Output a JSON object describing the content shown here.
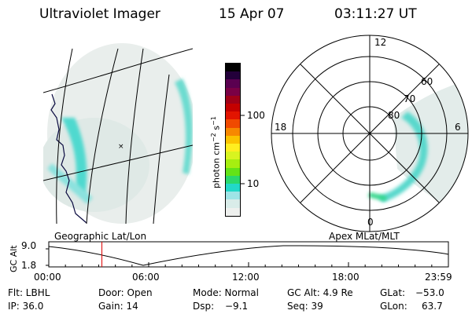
{
  "header": {
    "title": "Ultraviolet Imager",
    "date": "15 Apr 07",
    "time": "03:11:27 UT"
  },
  "panels": {
    "geo_label": "Geographic Lat/Lon",
    "apex_label": "Apex MLat/MLT"
  },
  "colorbar": {
    "title_main": "photon cm",
    "title_sup1": "−2",
    "title_mid": "s",
    "title_sup2": "−1",
    "ticks": [
      "100",
      "10"
    ],
    "colors": [
      "#000000",
      "#23003a",
      "#5a0050",
      "#7a0045",
      "#a00018",
      "#c40000",
      "#e21400",
      "#f04a00",
      "#f78800",
      "#fbc300",
      "#ffee20",
      "#d8f420",
      "#a6ee10",
      "#63e317",
      "#2ad86c",
      "#22d8c8",
      "#9ee4e6",
      "#d9ece9",
      "#eef0ee"
    ]
  },
  "polar": {
    "labels": {
      "top": "12",
      "left": "18",
      "right": "6",
      "bottom": "0"
    },
    "ring_labels": [
      "80",
      "70",
      "60"
    ]
  },
  "timeline": {
    "ylabel": "GC Alt",
    "ymax": "9.0",
    "ymin": "1.8",
    "xticks": [
      "00:00",
      "06:00",
      "12:00",
      "18:00",
      "23:59"
    ],
    "marker_hour": 3.19,
    "line_color": "#000000",
    "marker_color": "#e00000"
  },
  "info": {
    "filt": "Flt: LBHL",
    "ip": "IP: 36.0",
    "door": "Door: Open",
    "gain": "Gain: 14",
    "mode": "Mode: Normal",
    "dsp_label": "Dsp:",
    "dsp_val": "−9.1",
    "gcalt": "GC Alt: 4.9 Re",
    "seq": "Seq: 39",
    "glat_label": "GLat:",
    "glat_val": "−53.0",
    "glon_label": "GLon:",
    "glon_val": "63.7"
  }
}
